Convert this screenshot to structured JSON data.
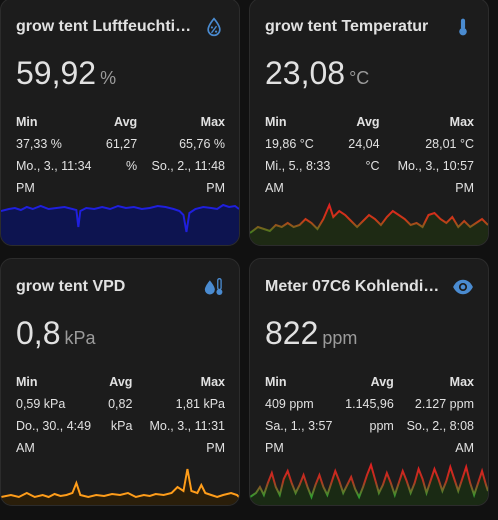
{
  "cards": [
    {
      "title": "grow tent Luftfeuchtig…",
      "icon": "water-percent-icon",
      "value": "59,92",
      "unit": "%",
      "min_label": "Min",
      "avg_label": "Avg",
      "max_label": "Max",
      "min_value": "37,33 %",
      "min_time_1": "Mo., 3., 11:34",
      "min_time_2": "PM",
      "avg_value_1": "61,27",
      "avg_value_2": "%",
      "max_value": "65,76 %",
      "max_time_1": "So., 2., 11:48",
      "max_time_2": "PM",
      "graph_color": "#1f1fdd",
      "graph_fill": "#0d1450"
    },
    {
      "title": "grow tent Temperatur",
      "icon": "thermometer-icon",
      "value": "23,08",
      "unit": "°C",
      "min_label": "Min",
      "avg_label": "Avg",
      "max_label": "Max",
      "min_value": "19,86 °C",
      "min_time_1": "Mi., 5., 8:33",
      "min_time_2": "AM",
      "avg_value_1": "24,04",
      "avg_value_2": "°C",
      "max_value": "28,01 °C",
      "max_time_1": "Mo., 3., 10:57",
      "max_time_2": "PM",
      "graph_color": "#dd2222",
      "graph_color_low": "#3f7f1f",
      "graph_fill": "#1e2a14"
    },
    {
      "title": "grow tent VPD",
      "icon": "water-thermometer-icon",
      "value": "0,8",
      "unit": "kPa",
      "min_label": "Min",
      "avg_label": "Avg",
      "max_label": "Max",
      "min_value": "0,59 kPa",
      "min_time_1": "Do., 30., 4:49",
      "min_time_2": "AM",
      "avg_value_1": "0,82",
      "avg_value_2": "kPa",
      "max_value": "1,81 kPa",
      "max_time_1": "Mo., 3., 11:31",
      "max_time_2": "PM",
      "graph_color": "#ff9d1a",
      "graph_fill": "#2a1e0a"
    },
    {
      "title": "Meter 07C6 Kohlendio…",
      "icon": "eye-icon",
      "value": "822",
      "unit": "ppm",
      "min_label": "Min",
      "avg_label": "Avg",
      "max_label": "Max",
      "min_value": "409 ppm",
      "min_time_1": "Sa., 1., 3:57",
      "min_time_2": "PM",
      "avg_value_1": "1.145,96",
      "avg_value_2": "ppm",
      "max_value": "2.127 ppm",
      "max_time_1": "So., 2., 8:08",
      "max_time_2": "AM",
      "graph_color": "#e02020",
      "graph_color_low": "#2f9e2f",
      "graph_fill": "#1a2a14"
    }
  ],
  "colors": {
    "background": "#111111",
    "card": "#1c1c1c",
    "icon_blue": "#4a8bd0"
  }
}
